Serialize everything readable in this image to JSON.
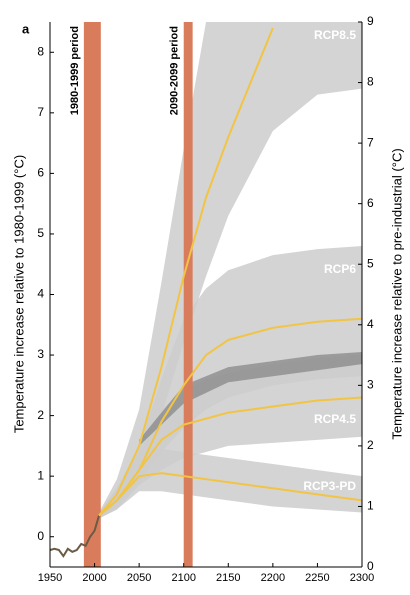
{
  "chart_data": {
    "type": "line",
    "panel_label": "a",
    "y_label": "Temperature increase relative to 1980-1999 (°C)",
    "y2_label": "Temperature increase relative to pre-industrial (°C)",
    "xlim": [
      1950,
      2300
    ],
    "xticks": [
      1950,
      2000,
      2050,
      2100,
      2150,
      2200,
      2250,
      2300
    ],
    "ylim": [
      -0.5,
      8.5
    ],
    "yticks": [
      0,
      1,
      2,
      3,
      4,
      5,
      6,
      7,
      8
    ],
    "y2lim": [
      0,
      9
    ],
    "y2ticks": [
      0,
      1,
      2,
      3,
      4,
      5,
      6,
      7,
      8,
      9
    ],
    "band_color": "#cdcdcd",
    "periods": [
      {
        "label": "1980-1999 period",
        "start": 1988,
        "end": 2007,
        "color": "#d97c5c"
      },
      {
        "label": "2090-2099 period",
        "start": 2100,
        "end": 2110,
        "color": "#d97c5c"
      }
    ],
    "historical": {
      "x": [
        1950,
        1955,
        1960,
        1965,
        1970,
        1975,
        1980,
        1985,
        1990,
        1995,
        2000,
        2005
      ],
      "values": [
        -0.22,
        -0.2,
        -0.22,
        -0.32,
        -0.2,
        -0.25,
        -0.22,
        -0.12,
        -0.15,
        0.0,
        0.1,
        0.35
      ],
      "color": "#6b5a45"
    },
    "x": [
      2005,
      2025,
      2050,
      2075,
      2100,
      2125,
      2150,
      2200,
      2250,
      2300
    ],
    "series": [
      {
        "name": "RCP8.5",
        "color": "#f2c444",
        "values": [
          0.35,
          0.7,
          1.5,
          2.8,
          4.3,
          5.6,
          6.6,
          8.4,
          null,
          null
        ],
        "upper": [
          0.4,
          0.95,
          2.1,
          4.2,
          6.4,
          8.5,
          8.5,
          8.5,
          8.5,
          8.5
        ],
        "lower": [
          0.3,
          0.55,
          1.1,
          2.0,
          3.2,
          4.3,
          5.3,
          6.7,
          7.3,
          7.4
        ]
      },
      {
        "name": "RCP6",
        "color": "#f2c444",
        "values": [
          0.35,
          0.6,
          1.1,
          1.9,
          2.5,
          3.0,
          3.25,
          3.45,
          3.55,
          3.6
        ],
        "upper": [
          0.4,
          0.8,
          1.5,
          2.6,
          3.6,
          4.1,
          4.4,
          4.65,
          4.75,
          4.8
        ],
        "lower": [
          0.3,
          0.5,
          0.9,
          1.4,
          1.8,
          2.1,
          2.3,
          2.5,
          2.6,
          2.65
        ]
      },
      {
        "name": "RCP4.5",
        "color": "#f2c444",
        "values": [
          0.35,
          0.6,
          1.1,
          1.6,
          1.85,
          1.95,
          2.05,
          2.15,
          2.25,
          2.3
        ],
        "upper": [
          0.4,
          0.75,
          1.4,
          2.1,
          2.4,
          2.6,
          2.7,
          2.85,
          2.95,
          3.0
        ],
        "lower": [
          0.3,
          0.45,
          0.85,
          1.1,
          1.3,
          1.4,
          1.5,
          1.55,
          1.6,
          1.65
        ]
      },
      {
        "name": "RCP3-PD",
        "color": "#f2c444",
        "values": [
          0.35,
          0.6,
          1.0,
          1.05,
          1.0,
          0.95,
          0.9,
          0.8,
          0.7,
          0.6
        ],
        "upper": [
          0.4,
          0.75,
          1.3,
          1.45,
          1.4,
          1.35,
          1.3,
          1.2,
          1.1,
          1.0
        ],
        "lower": [
          0.3,
          0.45,
          0.75,
          0.75,
          0.7,
          0.65,
          0.6,
          0.5,
          0.45,
          0.4
        ]
      }
    ],
    "dark_band": {
      "x": [
        2050,
        2100,
        2150,
        2200,
        2250,
        2300
      ],
      "upper": [
        1.6,
        2.5,
        2.8,
        2.9,
        3.0,
        3.05
      ],
      "lower": [
        1.5,
        2.2,
        2.55,
        2.65,
        2.75,
        2.85
      ],
      "color": "#8c8c8c"
    }
  }
}
